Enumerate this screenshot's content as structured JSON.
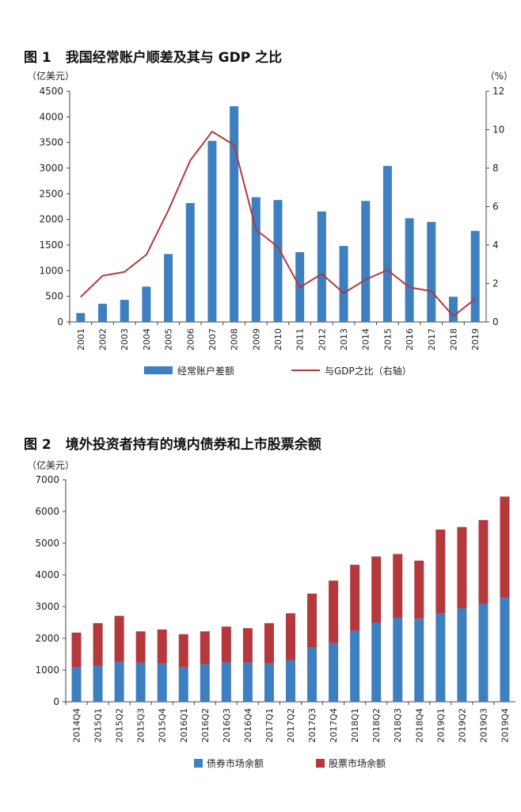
{
  "chart_data": [
    {
      "type": "bar+line",
      "title_num": "图 1",
      "title": "我国经常账户顺差及其与 GDP 之比",
      "left_unit": "（亿美元）",
      "right_unit": "（%）",
      "categories": [
        "2001",
        "2002",
        "2003",
        "2004",
        "2005",
        "2006",
        "2007",
        "2008",
        "2009",
        "2010",
        "2011",
        "2012",
        "2013",
        "2014",
        "2015",
        "2016",
        "2017",
        "2018",
        "2019"
      ],
      "series": [
        {
          "name": "经常账户差额",
          "type": "bar",
          "axis": "left",
          "color": "#3d7fbf",
          "values": [
            174,
            354,
            431,
            689,
            1324,
            2318,
            3532,
            4206,
            2433,
            2378,
            1361,
            2154,
            1482,
            2360,
            3042,
            2022,
            1951,
            491,
            1775
          ]
        },
        {
          "name": "与GDP之比（右轴）",
          "type": "line",
          "axis": "right",
          "color": "#b5383d",
          "values": [
            1.3,
            2.4,
            2.6,
            3.5,
            5.8,
            8.4,
            9.9,
            9.2,
            4.8,
            3.9,
            1.8,
            2.5,
            1.5,
            2.2,
            2.7,
            1.8,
            1.6,
            0.3,
            1.2
          ]
        }
      ],
      "ylim_left": [
        0,
        4500
      ],
      "yticks_left": [
        0,
        500,
        1000,
        1500,
        2000,
        2500,
        3000,
        3500,
        4000,
        4500
      ],
      "ylim_right": [
        0,
        12
      ],
      "yticks_right": [
        0,
        2,
        4,
        6,
        8,
        10,
        12
      ],
      "legend_position": "bottom"
    },
    {
      "type": "stacked-bar",
      "title_num": "图 2",
      "title": "境外投资者持有的境内债券和上市股票余额",
      "left_unit": "（亿美元）",
      "categories": [
        "2014Q4",
        "2015Q1",
        "2015Q2",
        "2015Q3",
        "2015Q4",
        "2016Q1",
        "2016Q2",
        "2016Q3",
        "2016Q4",
        "2017Q1",
        "2017Q2",
        "2017Q3",
        "2017Q4",
        "2018Q1",
        "2018Q2",
        "2018Q3",
        "2018Q4",
        "2019Q1",
        "2019Q2",
        "2019Q3",
        "2019Q4"
      ],
      "series": [
        {
          "name": "债券市场余额",
          "color": "#3d7fbf",
          "values": [
            1080,
            1150,
            1260,
            1230,
            1210,
            1080,
            1190,
            1240,
            1240,
            1210,
            1310,
            1710,
            1860,
            2240,
            2500,
            2650,
            2620,
            2780,
            2950,
            3100,
            3280
          ]
        },
        {
          "name": "股票市场余额",
          "color": "#b5383d",
          "values": [
            1100,
            1330,
            1450,
            990,
            1070,
            1050,
            1030,
            1130,
            1080,
            1270,
            1480,
            1700,
            1960,
            2080,
            2080,
            2010,
            1830,
            2650,
            2560,
            2630,
            3190
          ]
        }
      ],
      "ylim": [
        0,
        7000
      ],
      "yticks": [
        0,
        1000,
        2000,
        3000,
        4000,
        5000,
        6000,
        7000
      ],
      "legend_position": "bottom"
    }
  ]
}
